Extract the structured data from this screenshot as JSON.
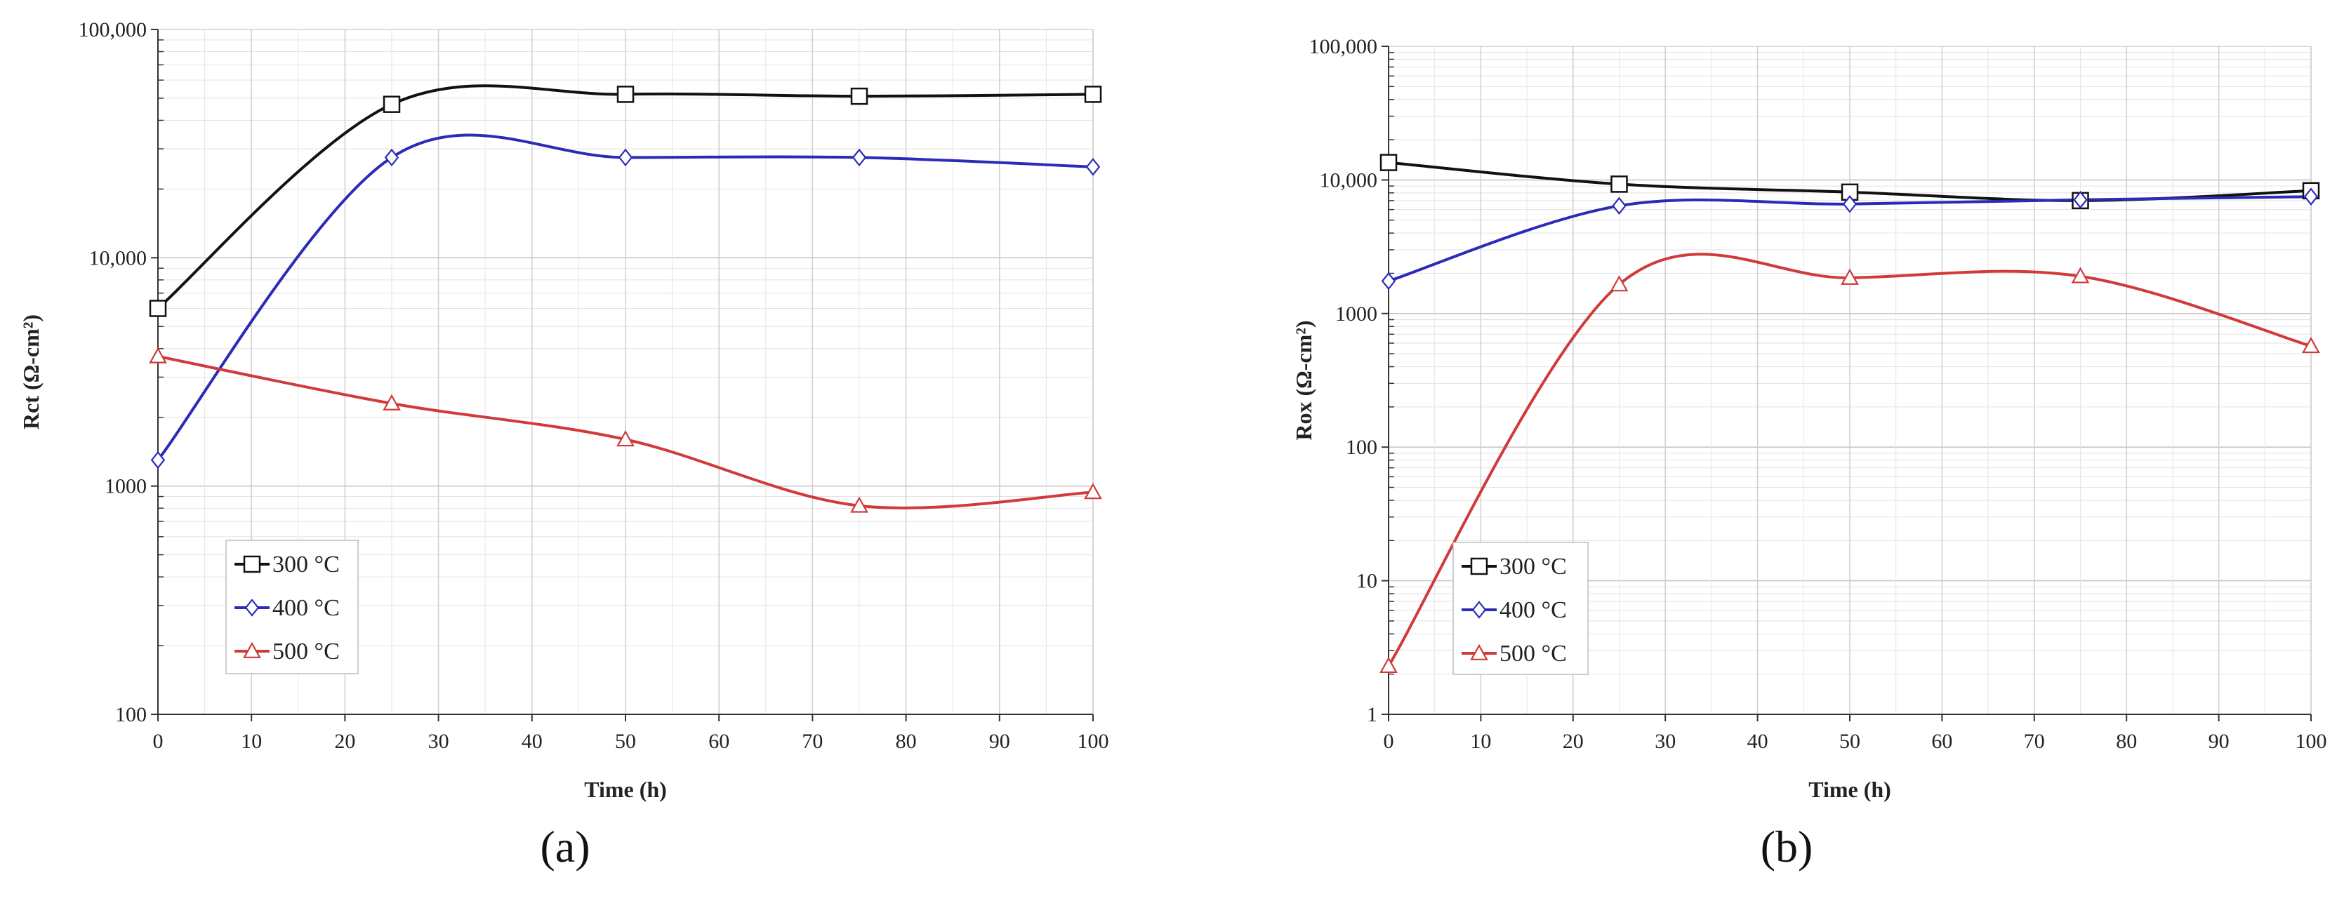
{
  "chart_data": [
    {
      "type": "line",
      "panel_label": "(a)",
      "xlabel": "Time (h)",
      "ylabel": "Rct (Ω-cm²)",
      "yscale": "log",
      "xlim": [
        0,
        100
      ],
      "ylim": [
        100,
        100000
      ],
      "x_ticks": [
        0,
        10,
        20,
        30,
        40,
        50,
        60,
        70,
        80,
        90,
        100
      ],
      "y_ticks": [
        100,
        1000,
        10000,
        100000
      ],
      "y_tick_labels": [
        "100",
        "1000",
        "10,000",
        "100,000"
      ],
      "grid": true,
      "legend_position": "lower-left",
      "x": [
        0,
        25,
        50,
        75,
        100
      ],
      "series": [
        {
          "name": "300 °C",
          "color": "#111111",
          "marker": "square",
          "values": [
            6000,
            47000,
            52000,
            51000,
            52000
          ]
        },
        {
          "name": "400 °C",
          "color": "#2b2bb8",
          "marker": "diamond",
          "values": [
            1300,
            27500,
            27500,
            27500,
            25000
          ]
        },
        {
          "name": "500 °C",
          "color": "#d03a3a",
          "marker": "triangle",
          "values": [
            3700,
            2300,
            1600,
            820,
            940
          ]
        }
      ]
    },
    {
      "type": "line",
      "panel_label": "(b)",
      "xlabel": "Time (h)",
      "ylabel": "Rox (Ω-cm²)",
      "yscale": "log",
      "xlim": [
        0,
        100
      ],
      "ylim": [
        1,
        100000
      ],
      "x_ticks": [
        0,
        10,
        20,
        30,
        40,
        50,
        60,
        70,
        80,
        90,
        100
      ],
      "y_ticks": [
        1,
        10,
        100,
        1000,
        10000,
        100000
      ],
      "y_tick_labels": [
        "1",
        "10",
        "100",
        "1000",
        "10,000",
        "100,000"
      ],
      "grid": true,
      "legend_position": "lower-left",
      "x": [
        0,
        25,
        50,
        75,
        100
      ],
      "series": [
        {
          "name": "300 °C",
          "color": "#111111",
          "marker": "square",
          "values": [
            13500,
            9300,
            8100,
            7000,
            8300
          ]
        },
        {
          "name": "400 °C",
          "color": "#2b2bb8",
          "marker": "diamond",
          "values": [
            1750,
            6400,
            6600,
            7100,
            7500
          ]
        },
        {
          "name": "500 °C",
          "color": "#d03a3a",
          "marker": "triangle",
          "values": [
            2.3,
            1650,
            1850,
            1900,
            570
          ]
        }
      ]
    }
  ]
}
